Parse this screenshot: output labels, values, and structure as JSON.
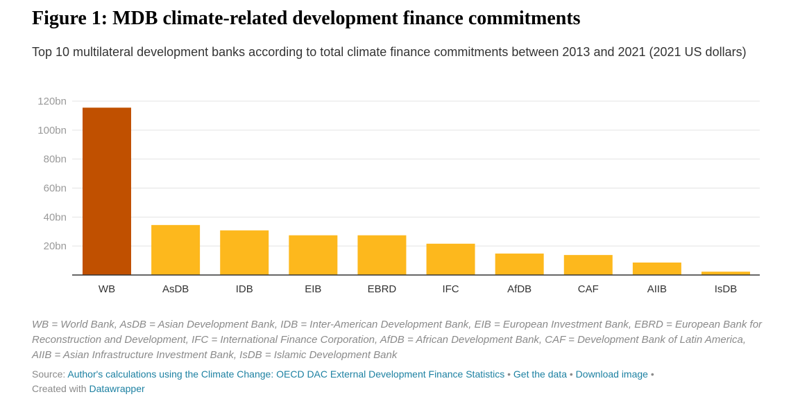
{
  "figure": {
    "title": "Figure 1: MDB climate-related development finance commitments",
    "subtitle": "Top 10 multilateral development banks according to total climate finance commitments between 2013 and 2021 (2021 US dollars)"
  },
  "chart_data": {
    "type": "bar",
    "categories": [
      "WB",
      "AsDB",
      "IDB",
      "EIB",
      "EBRD",
      "IFC",
      "AfDB",
      "CAF",
      "AIIB",
      "IsDB"
    ],
    "values": [
      115.5,
      34.5,
      30.8,
      27.4,
      27.4,
      21.6,
      14.8,
      13.8,
      8.6,
      2.3
    ],
    "ylim": [
      0,
      120
    ],
    "yticks": [
      20,
      40,
      60,
      80,
      100,
      120
    ],
    "ytick_labels": [
      "20bn",
      "40bn",
      "60bn",
      "80bn",
      "100bn",
      "120bn"
    ],
    "grid": true,
    "legend": "none",
    "colors": {
      "highlight": "#c05000",
      "default": "#fdb81d",
      "highlight_category": "WB",
      "gridline": "#e3e3e3",
      "baseline": "#333333"
    }
  },
  "notes": "WB = World Bank, AsDB = Asian Development Bank, IDB = Inter-American Development Bank, EIB = European Investment Bank, EBRD = European Bank for Reconstruction and Development, IFC = International Finance Corporation, AfDB = African Development Bank, CAF = Development Bank of Latin America, AIIB = Asian Infrastructure Investment Bank, IsDB = Islamic Development Bank",
  "footer": {
    "source_label": "Source: ",
    "source_link": "Author's calculations using the Climate Change: OECD DAC External Development Finance Statistics",
    "separator": " • ",
    "get_data": "Get the data",
    "download_image": "Download image",
    "created_with": "Created with ",
    "datawrapper": "Datawrapper"
  }
}
